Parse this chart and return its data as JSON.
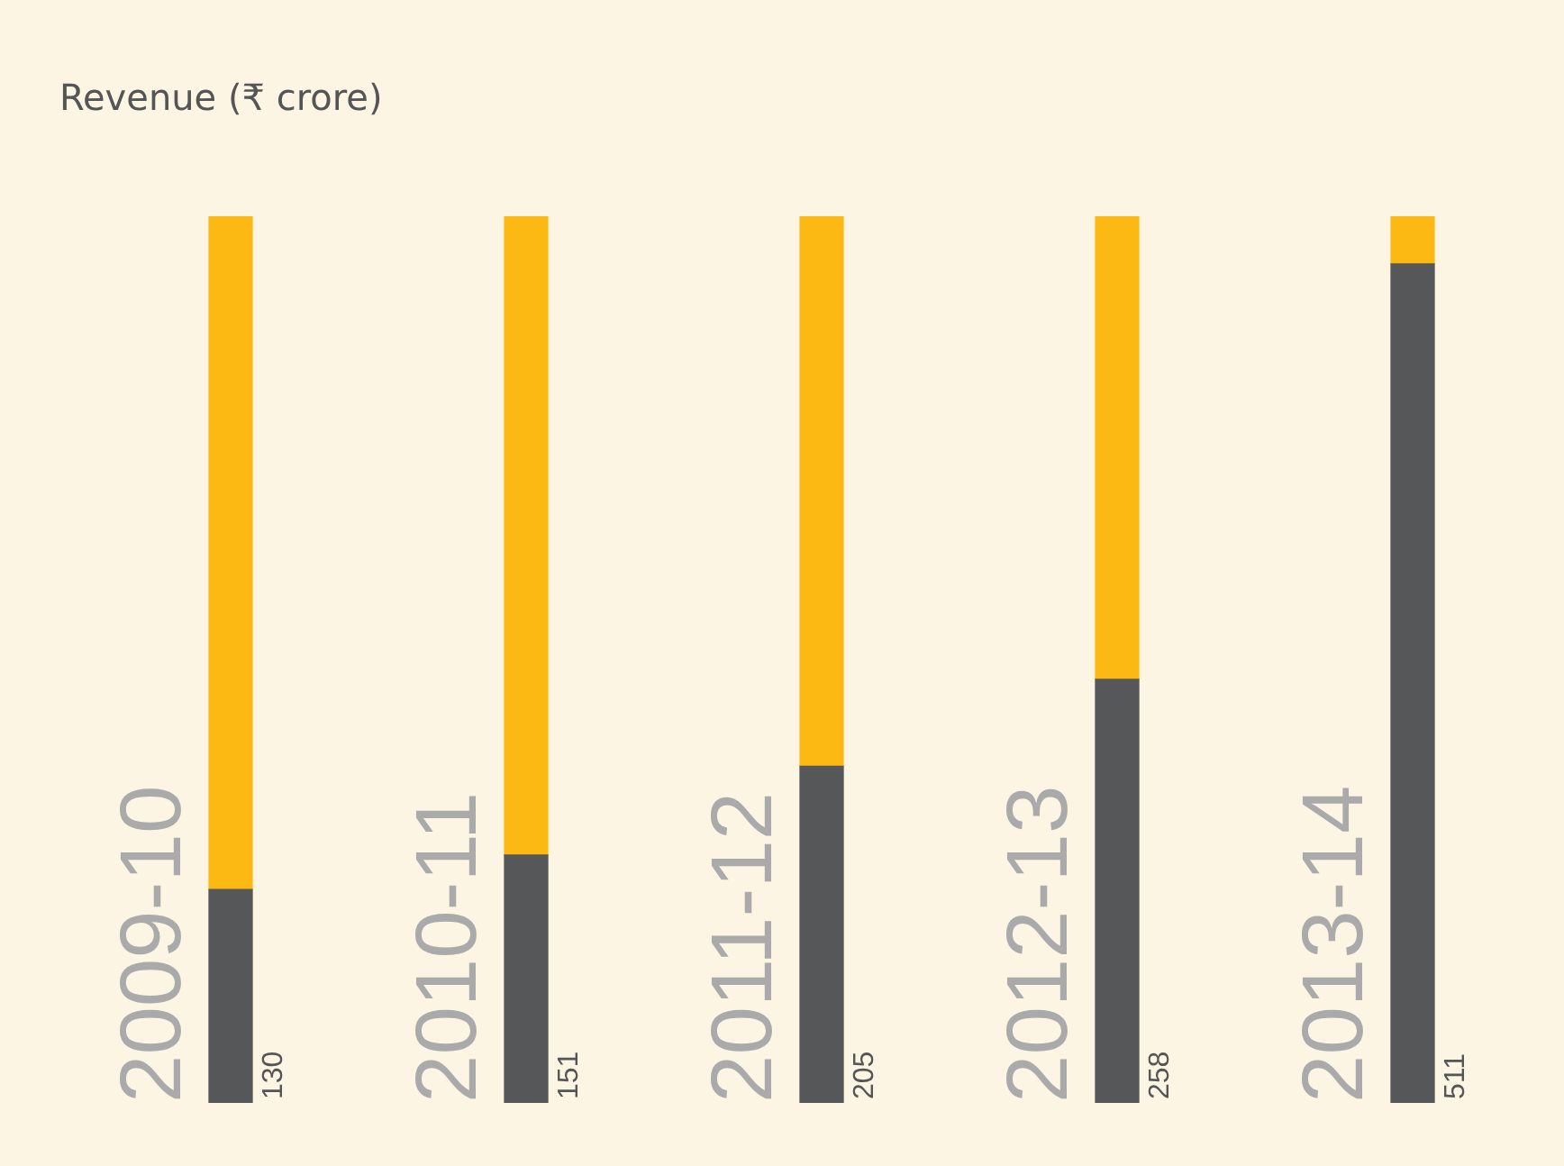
{
  "chart_data": {
    "type": "bar",
    "title": "Revenue (₹ crore)",
    "categories": [
      "2009-10",
      "2010-11",
      "2011-12",
      "2012-13",
      "2013-14"
    ],
    "stacked": true,
    "tick_labels": "x",
    "legend": false,
    "grid": false,
    "series": [
      {
        "color": "#555759",
        "values": [
          130,
          151,
          205,
          258,
          511
        ],
        "value_labels": [
          "130",
          "151",
          "205",
          "258",
          "511"
        ]
      },
      {
        "color": "#fdb913",
        "values": [
          410,
          389,
          335,
          282,
          29
        ]
      }
    ]
  }
}
